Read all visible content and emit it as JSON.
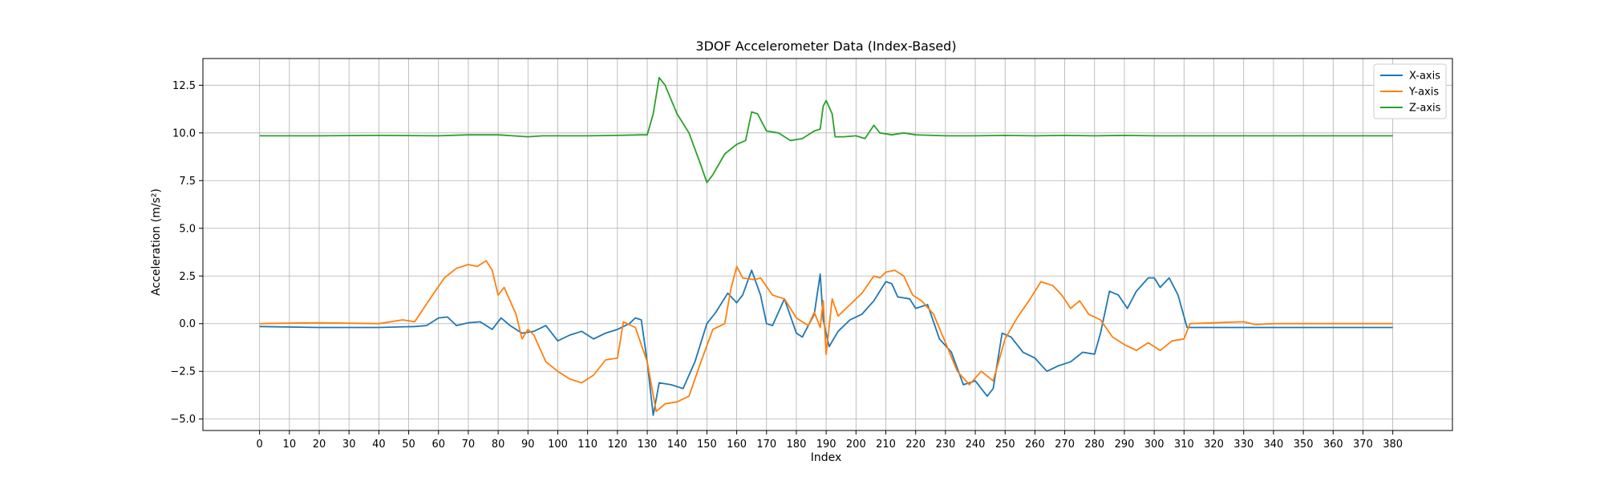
{
  "chart_data": {
    "type": "line",
    "title": "3DOF Accelerometer Data (Index-Based)",
    "xlabel": "Index",
    "ylabel": "Acceleration (m/s²)",
    "xlim": [
      -19,
      400
    ],
    "ylim": [
      -5.6,
      13.9
    ],
    "xticks": [
      0,
      10,
      20,
      30,
      40,
      50,
      60,
      70,
      80,
      90,
      100,
      110,
      120,
      130,
      140,
      150,
      160,
      170,
      180,
      190,
      200,
      210,
      220,
      230,
      240,
      250,
      260,
      270,
      280,
      290,
      300,
      310,
      320,
      330,
      340,
      350,
      360,
      370,
      380
    ],
    "yticks": [
      -5.0,
      -2.5,
      0.0,
      2.5,
      5.0,
      7.5,
      10.0,
      12.5
    ],
    "ytick_labels": [
      "−5.0",
      "−2.5",
      "0.0",
      "2.5",
      "5.0",
      "7.5",
      "10.0",
      "12.5"
    ],
    "grid": true,
    "legend_position": "top-right",
    "series": [
      {
        "name": "X-axis",
        "color": "#1f77b4",
        "points": [
          [
            0,
            -0.15
          ],
          [
            20,
            -0.2
          ],
          [
            40,
            -0.2
          ],
          [
            52,
            -0.15
          ],
          [
            56,
            -0.1
          ],
          [
            60,
            0.3
          ],
          [
            63,
            0.35
          ],
          [
            66,
            -0.1
          ],
          [
            70,
            0.05
          ],
          [
            74,
            0.1
          ],
          [
            78,
            -0.3
          ],
          [
            81,
            0.3
          ],
          [
            84,
            -0.1
          ],
          [
            88,
            -0.5
          ],
          [
            92,
            -0.4
          ],
          [
            96,
            -0.1
          ],
          [
            100,
            -0.9
          ],
          [
            104,
            -0.6
          ],
          [
            108,
            -0.4
          ],
          [
            112,
            -0.8
          ],
          [
            116,
            -0.5
          ],
          [
            120,
            -0.3
          ],
          [
            124,
            0.0
          ],
          [
            126,
            0.3
          ],
          [
            128,
            0.2
          ],
          [
            130,
            -2.0
          ],
          [
            132,
            -4.8
          ],
          [
            134,
            -3.1
          ],
          [
            138,
            -3.2
          ],
          [
            142,
            -3.4
          ],
          [
            146,
            -2.0
          ],
          [
            150,
            0.0
          ],
          [
            153,
            0.6
          ],
          [
            157,
            1.6
          ],
          [
            160,
            1.1
          ],
          [
            162,
            1.5
          ],
          [
            165,
            2.8
          ],
          [
            168,
            1.5
          ],
          [
            170,
            0.0
          ],
          [
            172,
            -0.1
          ],
          [
            176,
            1.3
          ],
          [
            180,
            -0.5
          ],
          [
            182,
            -0.7
          ],
          [
            186,
            0.5
          ],
          [
            188,
            2.6
          ],
          [
            189,
            0.2
          ],
          [
            191,
            -1.2
          ],
          [
            194,
            -0.4
          ],
          [
            198,
            0.2
          ],
          [
            202,
            0.5
          ],
          [
            206,
            1.2
          ],
          [
            210,
            2.2
          ],
          [
            212,
            2.1
          ],
          [
            214,
            1.4
          ],
          [
            218,
            1.3
          ],
          [
            220,
            0.8
          ],
          [
            224,
            1.0
          ],
          [
            228,
            -0.8
          ],
          [
            232,
            -1.5
          ],
          [
            236,
            -3.2
          ],
          [
            240,
            -3.0
          ],
          [
            244,
            -3.8
          ],
          [
            246,
            -3.4
          ],
          [
            249,
            -0.5
          ],
          [
            252,
            -0.7
          ],
          [
            256,
            -1.5
          ],
          [
            260,
            -1.8
          ],
          [
            264,
            -2.5
          ],
          [
            268,
            -2.2
          ],
          [
            272,
            -2.0
          ],
          [
            276,
            -1.5
          ],
          [
            280,
            -1.6
          ],
          [
            282,
            -0.5
          ],
          [
            285,
            1.7
          ],
          [
            288,
            1.5
          ],
          [
            291,
            0.8
          ],
          [
            294,
            1.7
          ],
          [
            298,
            2.4
          ],
          [
            300,
            2.4
          ],
          [
            302,
            1.9
          ],
          [
            305,
            2.4
          ],
          [
            308,
            1.5
          ],
          [
            311,
            -0.2
          ],
          [
            320,
            -0.2
          ],
          [
            340,
            -0.2
          ],
          [
            360,
            -0.2
          ],
          [
            380,
            -0.2
          ]
        ]
      },
      {
        "name": "Y-axis",
        "color": "#ff7f0e",
        "points": [
          [
            0,
            0.0
          ],
          [
            20,
            0.05
          ],
          [
            40,
            0.0
          ],
          [
            48,
            0.2
          ],
          [
            52,
            0.1
          ],
          [
            55,
            0.8
          ],
          [
            58,
            1.5
          ],
          [
            62,
            2.4
          ],
          [
            66,
            2.9
          ],
          [
            70,
            3.1
          ],
          [
            73,
            3.0
          ],
          [
            76,
            3.3
          ],
          [
            78,
            2.8
          ],
          [
            80,
            1.5
          ],
          [
            82,
            1.9
          ],
          [
            86,
            0.5
          ],
          [
            88,
            -0.8
          ],
          [
            90,
            -0.3
          ],
          [
            92,
            -0.6
          ],
          [
            96,
            -2.0
          ],
          [
            100,
            -2.5
          ],
          [
            104,
            -2.9
          ],
          [
            108,
            -3.1
          ],
          [
            112,
            -2.7
          ],
          [
            116,
            -1.9
          ],
          [
            120,
            -1.8
          ],
          [
            122,
            0.1
          ],
          [
            126,
            -0.2
          ],
          [
            130,
            -2.0
          ],
          [
            133,
            -4.6
          ],
          [
            136,
            -4.2
          ],
          [
            140,
            -4.1
          ],
          [
            144,
            -3.8
          ],
          [
            148,
            -2.0
          ],
          [
            152,
            -0.3
          ],
          [
            156,
            0.0
          ],
          [
            158,
            1.8
          ],
          [
            160,
            3.0
          ],
          [
            162,
            2.4
          ],
          [
            166,
            2.3
          ],
          [
            168,
            2.4
          ],
          [
            172,
            1.5
          ],
          [
            176,
            1.3
          ],
          [
            180,
            0.3
          ],
          [
            184,
            -0.1
          ],
          [
            186,
            0.6
          ],
          [
            188,
            -0.2
          ],
          [
            189,
            1.2
          ],
          [
            190,
            -1.6
          ],
          [
            192,
            1.3
          ],
          [
            194,
            0.4
          ],
          [
            198,
            1.0
          ],
          [
            202,
            1.6
          ],
          [
            206,
            2.5
          ],
          [
            208,
            2.4
          ],
          [
            210,
            2.7
          ],
          [
            213,
            2.8
          ],
          [
            216,
            2.5
          ],
          [
            219,
            1.5
          ],
          [
            222,
            1.2
          ],
          [
            226,
            0.5
          ],
          [
            230,
            -1.0
          ],
          [
            234,
            -2.5
          ],
          [
            238,
            -3.2
          ],
          [
            242,
            -2.5
          ],
          [
            246,
            -3.0
          ],
          [
            250,
            -0.8
          ],
          [
            254,
            0.3
          ],
          [
            258,
            1.2
          ],
          [
            262,
            2.2
          ],
          [
            266,
            2.0
          ],
          [
            269,
            1.5
          ],
          [
            272,
            0.8
          ],
          [
            275,
            1.2
          ],
          [
            278,
            0.5
          ],
          [
            282,
            0.2
          ],
          [
            286,
            -0.7
          ],
          [
            290,
            -1.1
          ],
          [
            294,
            -1.4
          ],
          [
            298,
            -1.0
          ],
          [
            302,
            -1.4
          ],
          [
            306,
            -0.9
          ],
          [
            310,
            -0.8
          ],
          [
            312,
            0.0
          ],
          [
            320,
            0.05
          ],
          [
            330,
            0.1
          ],
          [
            334,
            -0.05
          ],
          [
            340,
            0.0
          ],
          [
            360,
            0.0
          ],
          [
            380,
            0.0
          ]
        ]
      },
      {
        "name": "Z-axis",
        "color": "#2ca02c",
        "points": [
          [
            0,
            9.85
          ],
          [
            20,
            9.85
          ],
          [
            40,
            9.87
          ],
          [
            60,
            9.85
          ],
          [
            70,
            9.9
          ],
          [
            80,
            9.9
          ],
          [
            85,
            9.85
          ],
          [
            90,
            9.8
          ],
          [
            95,
            9.85
          ],
          [
            100,
            9.85
          ],
          [
            110,
            9.85
          ],
          [
            120,
            9.87
          ],
          [
            128,
            9.9
          ],
          [
            130,
            9.9
          ],
          [
            132,
            11.0
          ],
          [
            134,
            12.9
          ],
          [
            136,
            12.5
          ],
          [
            140,
            11.0
          ],
          [
            144,
            10.0
          ],
          [
            148,
            8.3
          ],
          [
            150,
            7.4
          ],
          [
            152,
            7.8
          ],
          [
            156,
            8.9
          ],
          [
            160,
            9.4
          ],
          [
            163,
            9.6
          ],
          [
            165,
            11.1
          ],
          [
            167,
            11.0
          ],
          [
            170,
            10.1
          ],
          [
            174,
            10.0
          ],
          [
            178,
            9.6
          ],
          [
            182,
            9.7
          ],
          [
            186,
            10.1
          ],
          [
            188,
            10.2
          ],
          [
            189,
            11.4
          ],
          [
            190,
            11.7
          ],
          [
            192,
            11.0
          ],
          [
            193,
            9.8
          ],
          [
            196,
            9.8
          ],
          [
            200,
            9.85
          ],
          [
            203,
            9.7
          ],
          [
            206,
            10.4
          ],
          [
            208,
            10.0
          ],
          [
            212,
            9.9
          ],
          [
            216,
            10.0
          ],
          [
            220,
            9.9
          ],
          [
            230,
            9.85
          ],
          [
            240,
            9.85
          ],
          [
            250,
            9.87
          ],
          [
            260,
            9.85
          ],
          [
            270,
            9.87
          ],
          [
            280,
            9.85
          ],
          [
            290,
            9.87
          ],
          [
            300,
            9.85
          ],
          [
            320,
            9.85
          ],
          [
            340,
            9.85
          ],
          [
            360,
            9.85
          ],
          [
            380,
            9.85
          ]
        ]
      }
    ]
  }
}
